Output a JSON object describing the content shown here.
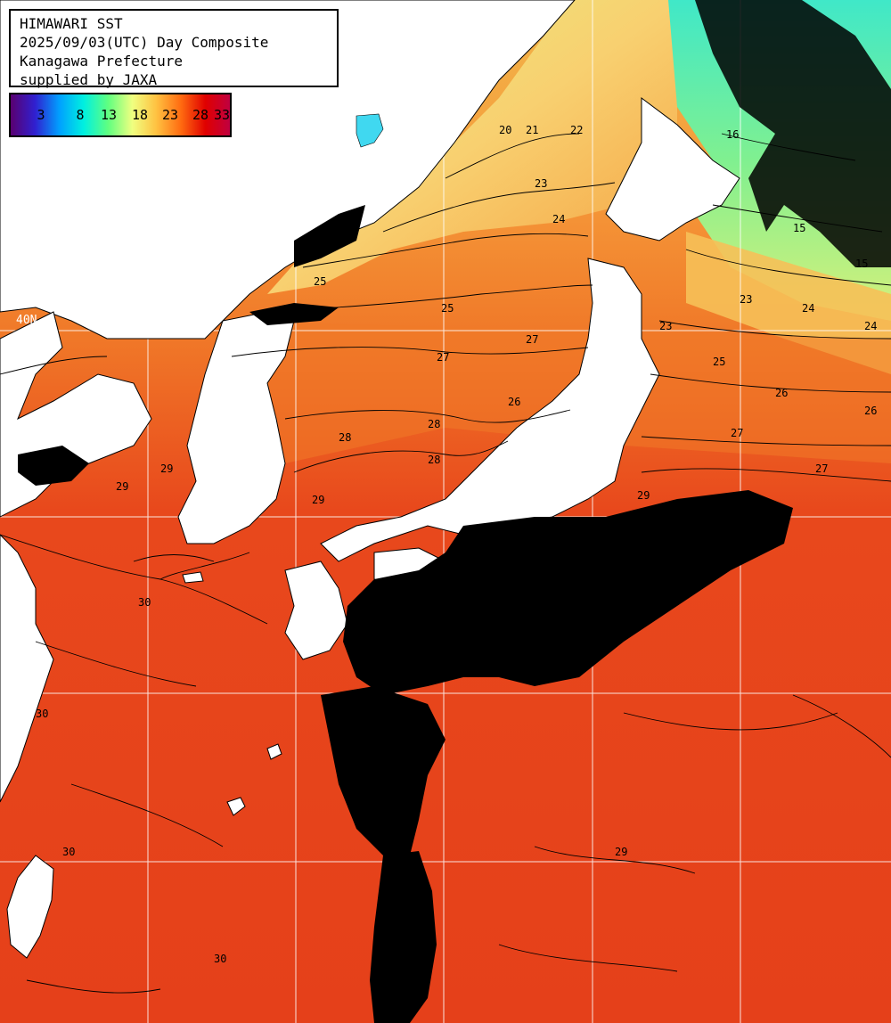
{
  "header": {
    "lines": [
      "HIMAWARI SST",
      "2025/09/03(UTC) Day Composite",
      "Kanagawa Prefecture",
      "supplied by JAXA"
    ]
  },
  "legend": {
    "ticks": [
      "3",
      "8",
      "13",
      "18",
      "23",
      "28",
      "33"
    ],
    "colors": [
      "#5a0070",
      "#3020d0",
      "#00a0ff",
      "#00f0e0",
      "#60ff80",
      "#f0ff80",
      "#ffc040",
      "#ff6a10",
      "#e00000",
      "#c00040"
    ]
  },
  "grid_labels": {
    "lat_40": "40N",
    "lat_30": "30"
  },
  "contour_labels": [
    "20",
    "21",
    "22",
    "23",
    "24",
    "25",
    "25",
    "26",
    "27",
    "27",
    "28",
    "28",
    "28",
    "29",
    "29",
    "29",
    "30",
    "30",
    "30",
    "30",
    "25",
    "26",
    "26",
    "27",
    "27",
    "29",
    "29",
    "24",
    "24",
    "23",
    "23",
    "16",
    "15",
    "15"
  ],
  "colors": {
    "land": "#ffffff",
    "cloud": "#000000",
    "warm_sea": "#e8401c",
    "mid_sea": "#f07020",
    "cool_sea": "#f8c060",
    "cold_sea": "#80e880",
    "grid": "#ffffff"
  }
}
